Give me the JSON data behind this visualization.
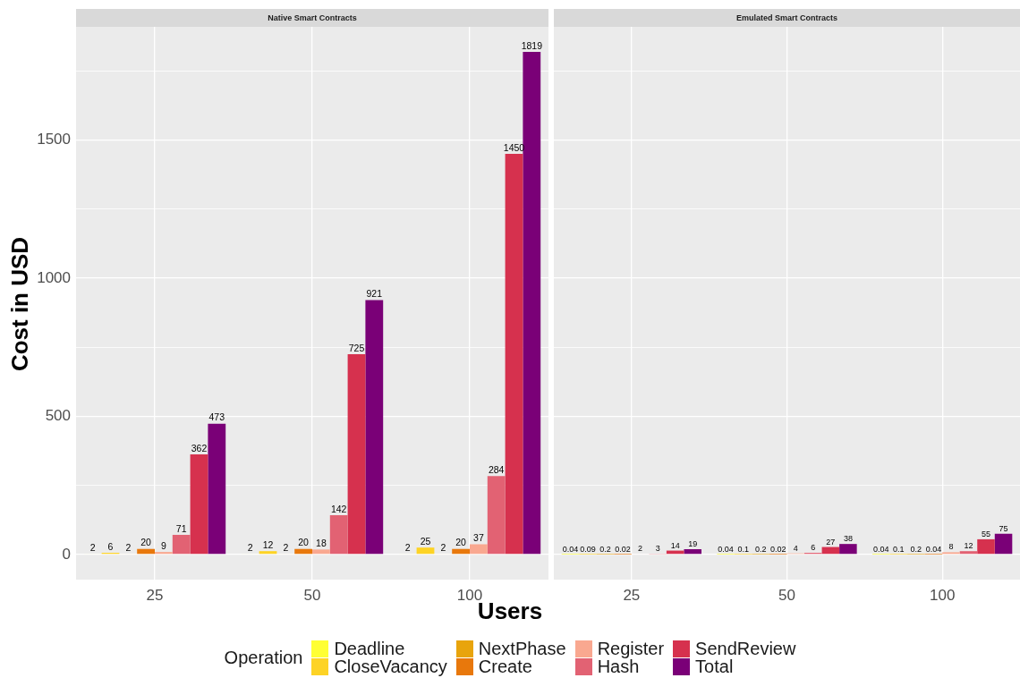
{
  "chart_data": [
    {
      "type": "bar",
      "title": "Native Smart Contracts",
      "xlabel": "Users",
      "ylabel": "Cost in USD",
      "legend_title": "Operation",
      "legend": "bottom",
      "grid": true,
      "data_labels": true,
      "categories": [
        "25",
        "50",
        "100"
      ],
      "ylim": [
        -91,
        1910
      ],
      "yticks": [
        0,
        {
          "value": 250,
          "label": null
        },
        500,
        {
          "value": 750,
          "label": null
        },
        1000,
        {
          "value": 1250,
          "label": null
        },
        1500,
        {
          "value": 1750,
          "label": null
        }
      ],
      "series": [
        {
          "name": "Deadline",
          "color": "#ffff33",
          "values": [
            2,
            2,
            2
          ]
        },
        {
          "name": "CloseVacancy",
          "color": "#fdd325",
          "values": [
            6,
            12,
            25
          ]
        },
        {
          "name": "NextPhase",
          "color": "#e8a40c",
          "values": [
            2,
            2,
            2
          ]
        },
        {
          "name": "Create",
          "color": "#e8780c",
          "values": [
            20,
            20,
            20
          ]
        },
        {
          "name": "Register",
          "color": "#f9a890",
          "values": [
            9,
            18,
            37
          ]
        },
        {
          "name": "Hash",
          "color": "#e26273",
          "values": [
            71,
            142,
            284
          ]
        },
        {
          "name": "SendReview",
          "color": "#d6314e",
          "values": [
            362,
            725,
            1450
          ]
        },
        {
          "name": "Total",
          "color": "#7a0077",
          "values": [
            473,
            921,
            1819
          ]
        }
      ]
    },
    {
      "type": "bar",
      "title": "Emulated Smart Contracts",
      "legend": "bottom",
      "grid": true,
      "data_labels": true,
      "tick_labels": "x",
      "categories": [
        "25",
        "50",
        "100"
      ],
      "ylim": [
        -91,
        1910
      ],
      "yticks": [
        0,
        {
          "value": 250,
          "label": null
        },
        500,
        {
          "value": 750,
          "label": null
        },
        1000,
        {
          "value": 1250,
          "label": null
        },
        1500,
        {
          "value": 1750,
          "label": null
        }
      ],
      "series": [
        {
          "name": "Deadline",
          "color": "#ffff33",
          "values": [
            0.04,
            0.04,
            0.04
          ]
        },
        {
          "name": "CloseVacancy",
          "color": "#fdd325",
          "values": [
            0.09,
            0.1,
            0.1
          ]
        },
        {
          "name": "NextPhase",
          "color": "#e8a40c",
          "values": [
            0.2,
            0.2,
            0.2
          ]
        },
        {
          "name": "Create",
          "color": "#e8780c",
          "values": [
            0.02,
            0.02,
            0.04
          ]
        },
        {
          "name": "Register",
          "color": "#f9a890",
          "values": [
            2,
            4,
            8
          ]
        },
        {
          "name": "Hash",
          "color": "#e26273",
          "values": [
            3,
            6,
            12
          ]
        },
        {
          "name": "SendReview",
          "color": "#d6314e",
          "values": [
            14,
            27,
            55
          ]
        },
        {
          "name": "Total",
          "color": "#7a0077",
          "values": [
            19,
            38,
            75
          ]
        }
      ]
    }
  ]
}
